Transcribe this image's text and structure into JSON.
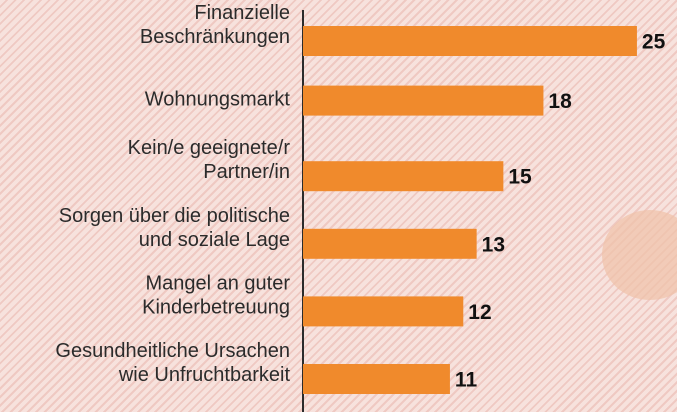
{
  "chart_data": {
    "type": "bar",
    "orientation": "horizontal",
    "categories": [
      "Finanzielle\nBeschränkungen",
      "Wohnungsmarkt",
      "Kein/e geeignete/r\nPartner/in",
      "Sorgen über die politische\nund soziale Lage",
      "Mangel an guter\nKinderbetreuung",
      "Gesundheitliche Ursachen\nwie Unfruchtbarkeit"
    ],
    "values": [
      25,
      18,
      15,
      13,
      12,
      11
    ],
    "color": "#f08a2c",
    "xlim": [
      0,
      28
    ]
  }
}
